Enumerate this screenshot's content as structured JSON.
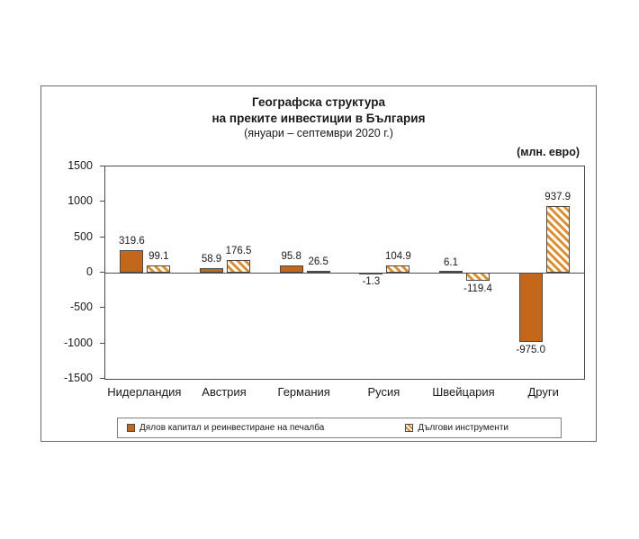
{
  "chart_data": {
    "type": "bar",
    "title_line1": "Географска структура",
    "title_line2": "на преките инвестиции в България",
    "subtitle": "(януари – септември 2020 г.)",
    "unit_label": "(млн. евро)",
    "categories": [
      "Нидерландия",
      "Австрия",
      "Германия",
      "Русия",
      "Швейцария",
      "Други"
    ],
    "series": [
      {
        "name": "Дялов капитал и реинвестиране на печалба",
        "style": "solid",
        "values": [
          319.6,
          58.9,
          95.8,
          -1.3,
          6.1,
          -975.0
        ]
      },
      {
        "name": "Дългови инструменти",
        "style": "hatched",
        "values": [
          99.1,
          176.5,
          26.5,
          104.9,
          -119.4,
          937.9
        ]
      }
    ],
    "y_axis": {
      "min": -1500,
      "max": 1500,
      "tick_step": 500,
      "ticks": [
        1500,
        1000,
        500,
        0,
        -500,
        -1000,
        -1500
      ]
    },
    "colors": {
      "bar_fill": "#C3681B",
      "bar_border": "#4a4a4a",
      "hatch_stripe": "#E08A28"
    },
    "legend_position": "bottom",
    "grid": false
  }
}
